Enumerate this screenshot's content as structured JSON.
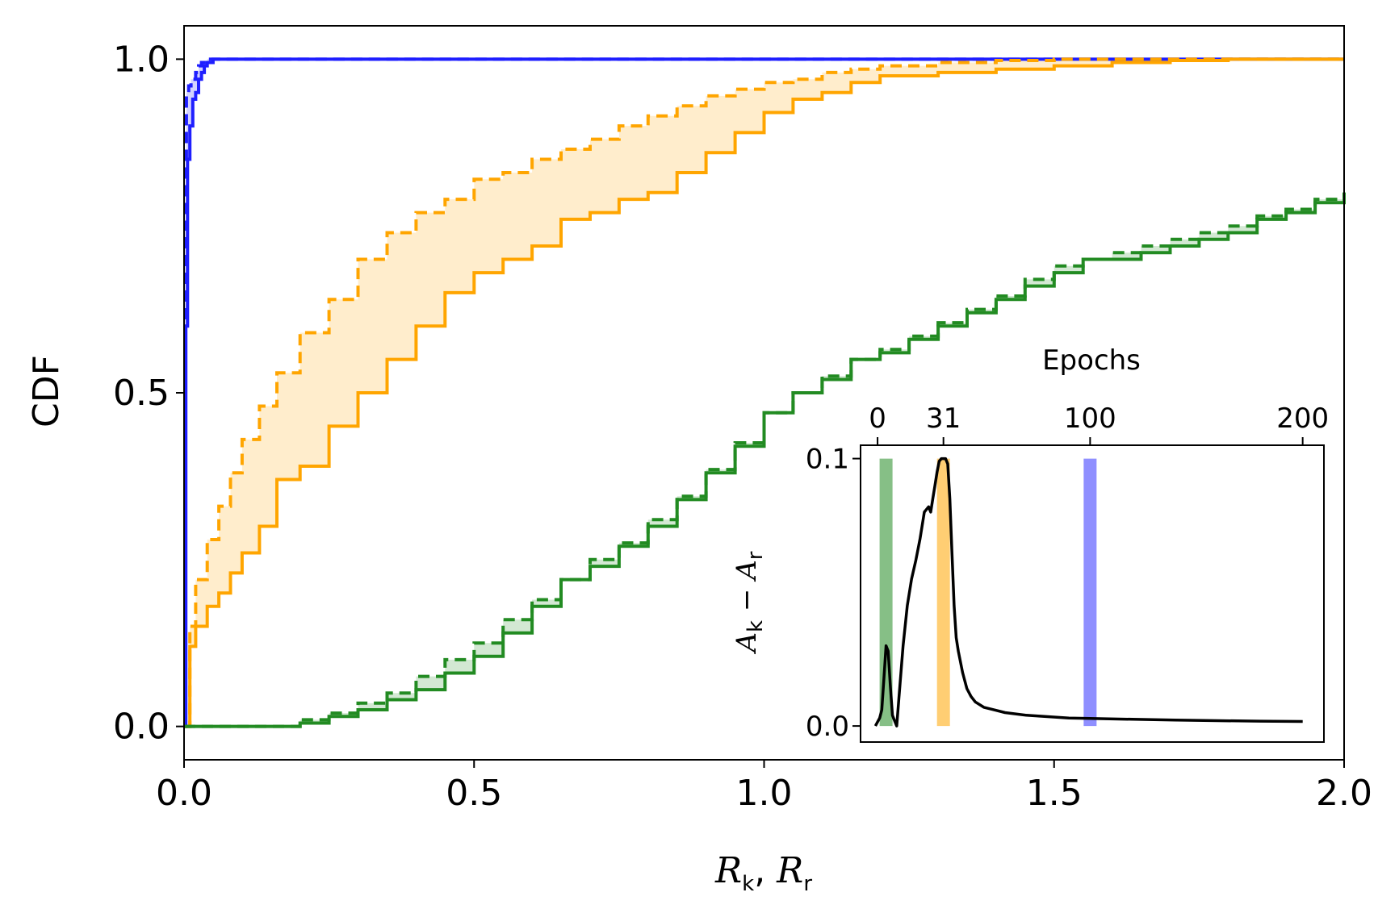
{
  "chart_data": [
    {
      "type": "line",
      "subtype": "cdf-step",
      "title": "",
      "xlabel_math": {
        "a": "R",
        "a_sub": "k",
        "sep": ", ",
        "b": "R",
        "b_sub": "r"
      },
      "ylabel": "CDF",
      "xlim": [
        0.0,
        2.0
      ],
      "ylim": [
        -0.05,
        1.05
      ],
      "xticks": [
        0.0,
        0.5,
        1.0,
        1.5,
        2.0
      ],
      "xtick_labels": [
        "0.0",
        "0.5",
        "1.0",
        "1.5",
        "2.0"
      ],
      "yticks": [
        0.0,
        0.5,
        1.0
      ],
      "ytick_labels": [
        "0.0",
        "0.5",
        "1.0"
      ],
      "series": [
        {
          "name": "blue-solid",
          "color": "#1f1fff",
          "style": "solid",
          "x": [
            0.0,
            0.003,
            0.006,
            0.01,
            0.015,
            0.02,
            0.025,
            0.03,
            0.035,
            0.04,
            0.05,
            0.06,
            0.065,
            2.0
          ],
          "y": [
            0.0,
            0.6,
            0.85,
            0.9,
            0.94,
            0.95,
            0.97,
            0.98,
            0.99,
            0.995,
            1.0,
            1.0,
            1.0,
            1.0
          ]
        },
        {
          "name": "blue-dashed",
          "color": "#1f1fff",
          "style": "dashed",
          "x": [
            0.0,
            0.002,
            0.004,
            0.008,
            0.012,
            0.02,
            0.025,
            0.03,
            0.04,
            2.0
          ],
          "y": [
            0.0,
            0.75,
            0.95,
            0.96,
            0.97,
            0.98,
            0.99,
            0.995,
            1.0,
            1.0
          ]
        },
        {
          "name": "orange-solid",
          "color": "#ffa500",
          "style": "solid",
          "x": [
            0.0,
            0.01,
            0.02,
            0.04,
            0.06,
            0.08,
            0.1,
            0.13,
            0.16,
            0.2,
            0.25,
            0.3,
            0.35,
            0.4,
            0.45,
            0.5,
            0.55,
            0.6,
            0.65,
            0.7,
            0.75,
            0.8,
            0.85,
            0.9,
            0.95,
            1.0,
            1.05,
            1.1,
            1.15,
            1.2,
            1.3,
            1.4,
            1.5,
            1.6,
            1.7,
            1.8,
            1.85,
            1.9,
            2.0
          ],
          "y": [
            0.0,
            0.12,
            0.15,
            0.18,
            0.2,
            0.23,
            0.26,
            0.3,
            0.37,
            0.39,
            0.45,
            0.5,
            0.55,
            0.6,
            0.65,
            0.68,
            0.7,
            0.72,
            0.76,
            0.77,
            0.79,
            0.8,
            0.83,
            0.86,
            0.89,
            0.92,
            0.94,
            0.95,
            0.965,
            0.975,
            0.98,
            0.985,
            0.99,
            0.995,
            0.998,
            1.0,
            1.0,
            1.0,
            1.0
          ]
        },
        {
          "name": "orange-dashed",
          "color": "#ffa500",
          "style": "dashed",
          "x": [
            0.0,
            0.01,
            0.02,
            0.04,
            0.06,
            0.08,
            0.1,
            0.13,
            0.16,
            0.2,
            0.25,
            0.3,
            0.35,
            0.4,
            0.45,
            0.5,
            0.55,
            0.6,
            0.65,
            0.7,
            0.75,
            0.8,
            0.85,
            0.9,
            0.95,
            1.0,
            1.05,
            1.1,
            1.15,
            1.2,
            1.3,
            1.4,
            1.5,
            1.6,
            1.7,
            1.8,
            1.85,
            1.9,
            2.0
          ],
          "y": [
            0.0,
            0.15,
            0.22,
            0.28,
            0.33,
            0.38,
            0.43,
            0.48,
            0.53,
            0.59,
            0.64,
            0.7,
            0.74,
            0.77,
            0.79,
            0.82,
            0.83,
            0.85,
            0.865,
            0.88,
            0.9,
            0.915,
            0.93,
            0.945,
            0.955,
            0.965,
            0.97,
            0.98,
            0.985,
            0.99,
            0.995,
            0.998,
            1.0,
            1.0,
            1.0,
            1.0,
            1.0,
            1.0,
            1.0
          ]
        },
        {
          "name": "green-solid",
          "color": "#228b22",
          "style": "solid",
          "x": [
            0.0,
            0.1,
            0.14,
            0.2,
            0.25,
            0.3,
            0.35,
            0.4,
            0.45,
            0.5,
            0.55,
            0.6,
            0.65,
            0.7,
            0.75,
            0.8,
            0.85,
            0.9,
            0.95,
            1.0,
            1.05,
            1.1,
            1.15,
            1.2,
            1.25,
            1.3,
            1.35,
            1.4,
            1.45,
            1.5,
            1.55,
            1.6,
            1.65,
            1.7,
            1.75,
            1.8,
            1.85,
            1.9,
            1.95,
            2.0
          ],
          "y": [
            0.0,
            0.0,
            0.0,
            0.005,
            0.015,
            0.025,
            0.04,
            0.055,
            0.08,
            0.105,
            0.14,
            0.18,
            0.22,
            0.24,
            0.27,
            0.3,
            0.34,
            0.38,
            0.42,
            0.47,
            0.5,
            0.52,
            0.55,
            0.56,
            0.58,
            0.6,
            0.62,
            0.64,
            0.66,
            0.68,
            0.7,
            0.7,
            0.71,
            0.72,
            0.73,
            0.74,
            0.76,
            0.77,
            0.785,
            0.8
          ]
        },
        {
          "name": "green-dashed",
          "color": "#228b22",
          "style": "dashed",
          "x": [
            0.0,
            0.1,
            0.14,
            0.2,
            0.25,
            0.3,
            0.35,
            0.4,
            0.45,
            0.5,
            0.55,
            0.6,
            0.65,
            0.7,
            0.75,
            0.8,
            0.85,
            0.9,
            0.95,
            1.0,
            1.05,
            1.1,
            1.15,
            1.2,
            1.25,
            1.3,
            1.35,
            1.4,
            1.45,
            1.5,
            1.55,
            1.6,
            1.65,
            1.7,
            1.75,
            1.8,
            1.85,
            1.9,
            1.95,
            2.0
          ],
          "y": [
            0.0,
            0.0,
            0.0,
            0.01,
            0.02,
            0.035,
            0.05,
            0.075,
            0.1,
            0.125,
            0.16,
            0.19,
            0.22,
            0.25,
            0.275,
            0.31,
            0.345,
            0.385,
            0.425,
            0.47,
            0.5,
            0.525,
            0.55,
            0.565,
            0.585,
            0.605,
            0.625,
            0.645,
            0.67,
            0.69,
            0.7,
            0.71,
            0.72,
            0.73,
            0.74,
            0.75,
            0.765,
            0.775,
            0.79,
            0.8
          ]
        }
      ],
      "bands": [
        {
          "between": [
            "blue-solid",
            "blue-dashed"
          ],
          "color": "#1f1fff",
          "opacity": 0.2
        },
        {
          "between": [
            "orange-solid",
            "orange-dashed"
          ],
          "color": "#ffa500",
          "opacity": 0.2
        },
        {
          "between": [
            "green-solid",
            "green-dashed"
          ],
          "color": "#228b22",
          "opacity": 0.2
        }
      ]
    },
    {
      "type": "line",
      "subtype": "inset",
      "ylabel_math": {
        "a": "A",
        "a_sub": "k",
        "op": " − ",
        "b": "A",
        "b_sub": "r"
      },
      "top_xlabel": "Epochs",
      "xlim": [
        -8,
        210
      ],
      "ylim": [
        -0.006,
        0.105
      ],
      "top_xticks": [
        0,
        31,
        100,
        200
      ],
      "top_xtick_labels": [
        "0",
        "31",
        "100",
        "200"
      ],
      "yticks": [
        0.0,
        0.1
      ],
      "ytick_labels": [
        "0.0",
        "0.1"
      ],
      "series": [
        {
          "name": "accuracy-gap",
          "color": "#000000",
          "x": [
            -1,
            1,
            2,
            3,
            4,
            5,
            6,
            7,
            8,
            9,
            10,
            12,
            14,
            16,
            18,
            20,
            22,
            24,
            25,
            26,
            27,
            28,
            29,
            30,
            31,
            32,
            33,
            34,
            35,
            36,
            37,
            38,
            40,
            42,
            44,
            46,
            50,
            55,
            60,
            70,
            80,
            90,
            100,
            120,
            140,
            160,
            180,
            200
          ],
          "y": [
            0.0,
            0.003,
            0.006,
            0.018,
            0.03,
            0.028,
            0.015,
            0.004,
            0.002,
            0.0,
            0.01,
            0.03,
            0.045,
            0.055,
            0.062,
            0.07,
            0.08,
            0.082,
            0.08,
            0.085,
            0.09,
            0.095,
            0.099,
            0.1,
            0.1,
            0.1,
            0.098,
            0.085,
            0.065,
            0.045,
            0.033,
            0.028,
            0.02,
            0.014,
            0.011,
            0.009,
            0.007,
            0.006,
            0.005,
            0.004,
            0.0035,
            0.003,
            0.0028,
            0.0025,
            0.0022,
            0.002,
            0.0018,
            0.0017
          ]
        }
      ],
      "highlights": [
        {
          "epoch": 4,
          "color": "#228b22",
          "opacity": 0.55
        },
        {
          "epoch": 31,
          "color": "#ffa500",
          "opacity": 0.55
        },
        {
          "epoch": 100,
          "color": "#1f1fff",
          "opacity": 0.5
        }
      ]
    }
  ]
}
